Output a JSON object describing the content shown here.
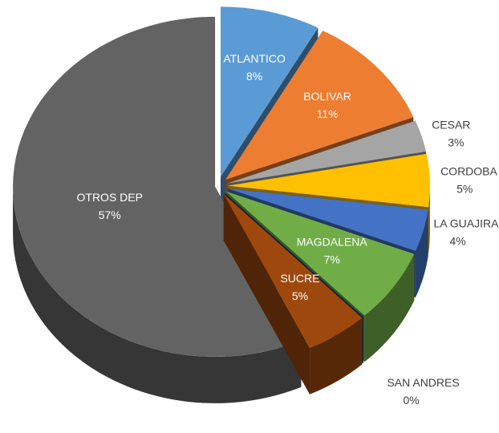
{
  "chart_data": {
    "type": "pie3d",
    "categories": [
      "ATLANTICO",
      "BOLIVAR",
      "CESAR",
      "CORDOBA",
      "LA GUAJIRA",
      "MAGDALENA",
      "SAN ANDRES",
      "SUCRE",
      "OTROS DEP"
    ],
    "values": [
      8,
      11,
      3,
      5,
      4,
      7,
      0,
      5,
      57
    ],
    "value_labels": [
      "8%",
      "11%",
      "3%",
      "5%",
      "4%",
      "7%",
      "0%",
      "5%",
      "57%"
    ],
    "colors": [
      "#5b9bd5",
      "#ed7d31",
      "#a5a5a5",
      "#ffc000",
      "#4472c4",
      "#70ad47",
      "#264478",
      "#9e480e",
      "#636363"
    ]
  }
}
